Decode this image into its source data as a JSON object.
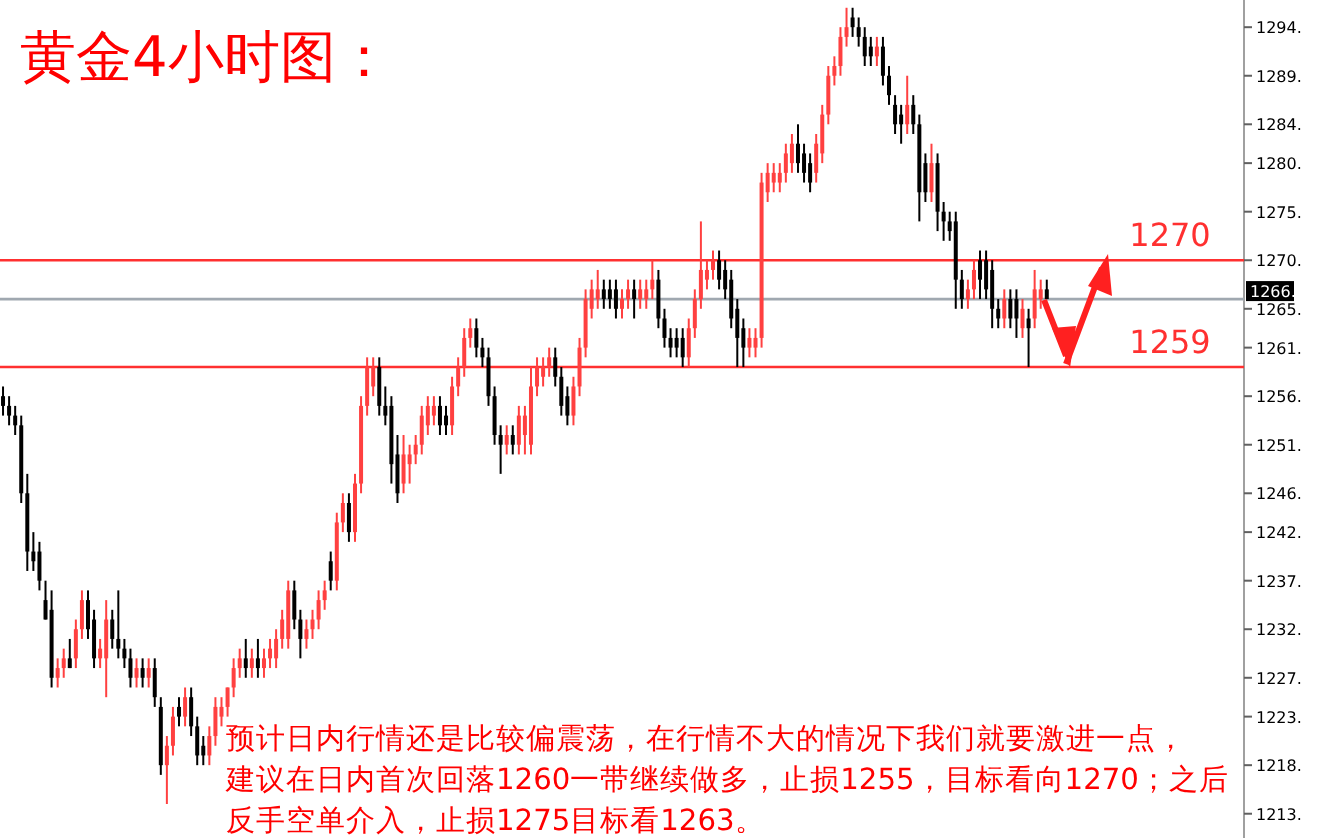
{
  "chart_data": {
    "type": "candlestick",
    "title": "黄金4小时图：",
    "categories": [
      null,
      null,
      null,
      null,
      null,
      null,
      null,
      null,
      null,
      null,
      null,
      null,
      null,
      null,
      null,
      null,
      null,
      null,
      null,
      null,
      null,
      null,
      null,
      null,
      null,
      null,
      null,
      null,
      null,
      null,
      null,
      null,
      null,
      null,
      null,
      null,
      null,
      null,
      null,
      null,
      null,
      null,
      null,
      null,
      null,
      null,
      null,
      null,
      null,
      null,
      null,
      null,
      null,
      null,
      null,
      null,
      null,
      null,
      null,
      null,
      null,
      null,
      null,
      null,
      null,
      null,
      null,
      null,
      null,
      null,
      null,
      null,
      null,
      null,
      null,
      null,
      null,
      null,
      null,
      null,
      null,
      null,
      null,
      null,
      null,
      null,
      null,
      null,
      null,
      null,
      null,
      null,
      null,
      null,
      null,
      null,
      null,
      null,
      null,
      null,
      null,
      null,
      null,
      null,
      null,
      null,
      null,
      null,
      null,
      null,
      null,
      null,
      null,
      null,
      null,
      null,
      null,
      null,
      null,
      null,
      null,
      null,
      null,
      null,
      null,
      null,
      null,
      null,
      null,
      null,
      null,
      null,
      null,
      null,
      null,
      null,
      null,
      null,
      null,
      null,
      null,
      null,
      null,
      null,
      null,
      null,
      null,
      null,
      null,
      null,
      null,
      null,
      null,
      null,
      null,
      null,
      null,
      null,
      null,
      null,
      null,
      null,
      null,
      null,
      null,
      null,
      null,
      null,
      null,
      null,
      null,
      null,
      null,
      null,
      null,
      null,
      null,
      null,
      null,
      null,
      null,
      null,
      null,
      null,
      null,
      null,
      null,
      null,
      null,
      null,
      null,
      null,
      null,
      null,
      null,
      null,
      null,
      null,
      null,
      null,
      null,
      null,
      null,
      null,
      null
    ],
    "ohlc": [
      [
        1256,
        1257,
        1254,
        1255
      ],
      [
        1255,
        1256,
        1253,
        1254
      ],
      [
        1254,
        1255,
        1252,
        1253
      ],
      [
        1253,
        1254,
        1245,
        1246
      ],
      [
        1246,
        1248,
        1238,
        1240
      ],
      [
        1240,
        1242,
        1238,
        1239
      ],
      [
        1240,
        1241,
        1236,
        1237
      ],
      [
        1235,
        1237,
        1233,
        1233
      ],
      [
        1234,
        1236,
        1226,
        1227
      ],
      [
        1227,
        1229,
        1226,
        1228
      ],
      [
        1228,
        1230,
        1227,
        1229
      ],
      [
        1229,
        1231,
        1228,
        1228
      ],
      [
        1229,
        1233,
        1228,
        1232
      ],
      [
        1232,
        1236,
        1231,
        1235
      ],
      [
        1235,
        1236,
        1231,
        1232
      ],
      [
        1233,
        1234,
        1228,
        1229
      ],
      [
        1229,
        1231,
        1228,
        1230
      ],
      [
        1229,
        1235,
        1225,
        1233
      ],
      [
        1233,
        1234,
        1230,
        1231
      ],
      [
        1231,
        1236,
        1229,
        1230
      ],
      [
        1230,
        1231,
        1228,
        1229
      ],
      [
        1229,
        1230,
        1226,
        1227
      ],
      [
        1227,
        1229,
        1226,
        1228
      ],
      [
        1228,
        1229,
        1226,
        1227
      ],
      [
        1227,
        1229,
        1226,
        1228
      ],
      [
        1228,
        1229,
        1224,
        1225
      ],
      [
        1224,
        1225,
        1217,
        1218
      ],
      [
        1218,
        1221,
        1214,
        1220
      ],
      [
        1220,
        1224,
        1219,
        1223
      ],
      [
        1224,
        1225,
        1222,
        1223
      ],
      [
        1223,
        1226,
        1222,
        1225
      ],
      [
        1225,
        1226,
        1221,
        1222
      ],
      [
        1222,
        1223,
        1218,
        1219
      ],
      [
        1220,
        1221,
        1218,
        1219
      ],
      [
        1219,
        1222,
        1218,
        1221
      ],
      [
        1221,
        1225,
        1220,
        1224
      ],
      [
        1223,
        1225,
        1222,
        1224
      ],
      [
        1224,
        1226,
        1223,
        1226
      ],
      [
        1226,
        1229,
        1225,
        1228
      ],
      [
        1228,
        1230,
        1227,
        1229
      ],
      [
        1229,
        1231,
        1227,
        1228
      ],
      [
        1228,
        1230,
        1227,
        1229
      ],
      [
        1229,
        1231,
        1227,
        1228
      ],
      [
        1228,
        1230,
        1227,
        1229
      ],
      [
        1229,
        1231,
        1228,
        1230
      ],
      [
        1229,
        1232,
        1228,
        1231
      ],
      [
        1231,
        1234,
        1230,
        1233
      ],
      [
        1231,
        1237,
        1230,
        1236
      ],
      [
        1236,
        1237,
        1232,
        1233
      ],
      [
        1233,
        1234,
        1229,
        1231
      ],
      [
        1231,
        1233,
        1230,
        1232
      ],
      [
        1232,
        1234,
        1231,
        1233
      ],
      [
        1233,
        1236,
        1232,
        1235
      ],
      [
        1235,
        1237,
        1234,
        1236
      ],
      [
        1239,
        1240,
        1236,
        1237
      ],
      [
        1237,
        1244,
        1236,
        1243
      ],
      [
        1243,
        1246,
        1242,
        1245
      ],
      [
        1245,
        1246,
        1241,
        1242
      ],
      [
        1242,
        1248,
        1241,
        1247
      ],
      [
        1247,
        1256,
        1246,
        1255
      ],
      [
        1255,
        1260,
        1254,
        1259
      ],
      [
        1257,
        1260,
        1256,
        1259
      ],
      [
        1259,
        1260,
        1254,
        1255
      ],
      [
        1255,
        1257,
        1253,
        1254
      ],
      [
        1255,
        1256,
        1247,
        1249
      ],
      [
        1250,
        1252,
        1245,
        1246
      ],
      [
        1247,
        1252,
        1246,
        1250
      ],
      [
        1249,
        1251,
        1247,
        1250
      ],
      [
        1250,
        1252,
        1249,
        1251
      ],
      [
        1251,
        1255,
        1250,
        1254
      ],
      [
        1253,
        1256,
        1252,
        1255
      ],
      [
        1254,
        1256,
        1253,
        1255
      ],
      [
        1255,
        1256,
        1252,
        1253
      ],
      [
        1254,
        1255,
        1252,
        1253
      ],
      [
        1253,
        1258,
        1252,
        1257
      ],
      [
        1257,
        1260,
        1256,
        1259
      ],
      [
        1259,
        1263,
        1258,
        1262
      ],
      [
        1262,
        1264,
        1261,
        1263
      ],
      [
        1263,
        1264,
        1260,
        1261
      ],
      [
        1261,
        1262,
        1259,
        1260
      ],
      [
        1260,
        1261,
        1255,
        1256
      ],
      [
        1256,
        1257,
        1251,
        1252
      ],
      [
        1252,
        1253,
        1248,
        1251
      ],
      [
        1251,
        1253,
        1250,
        1252
      ],
      [
        1252,
        1253,
        1250,
        1251
      ],
      [
        1251,
        1255,
        1250,
        1254
      ],
      [
        1252,
        1255,
        1250,
        1254
      ],
      [
        1251,
        1259,
        1250,
        1257
      ],
      [
        1257,
        1260,
        1256,
        1259
      ],
      [
        1258,
        1260,
        1257,
        1259
      ],
      [
        1259,
        1261,
        1258,
        1260
      ],
      [
        1260,
        1261,
        1257,
        1258
      ],
      [
        1258,
        1259,
        1254,
        1255
      ],
      [
        1256,
        1257,
        1253,
        1254
      ],
      [
        1254,
        1258,
        1253,
        1257
      ],
      [
        1257,
        1262,
        1256,
        1261
      ],
      [
        1261,
        1267,
        1260,
        1266
      ],
      [
        1265,
        1268,
        1264,
        1267
      ],
      [
        1266,
        1269,
        1265,
        1267
      ],
      [
        1267,
        1268,
        1265,
        1266
      ],
      [
        1267,
        1268,
        1265,
        1266
      ],
      [
        1267,
        1268,
        1264,
        1265
      ],
      [
        1265,
        1267,
        1264,
        1266
      ],
      [
        1266,
        1268,
        1265,
        1267
      ],
      [
        1267,
        1268,
        1264,
        1266
      ],
      [
        1266,
        1268,
        1265,
        1267
      ],
      [
        1266,
        1268,
        1265,
        1267
      ],
      [
        1267,
        1270,
        1266,
        1268
      ],
      [
        1268,
        1269,
        1263,
        1264
      ],
      [
        1264,
        1265,
        1261,
        1262
      ],
      [
        1262,
        1263,
        1260,
        1261
      ],
      [
        1262,
        1263,
        1260,
        1261
      ],
      [
        1262,
        1263,
        1259,
        1260
      ],
      [
        1260,
        1264,
        1259,
        1263
      ],
      [
        1263,
        1267,
        1262,
        1266
      ],
      [
        1266,
        1274,
        1265,
        1269
      ],
      [
        1268,
        1270,
        1267,
        1269
      ],
      [
        1269,
        1271,
        1268,
        1270
      ],
      [
        1270,
        1271,
        1267,
        1268
      ],
      [
        1269,
        1270,
        1266,
        1267
      ],
      [
        1268,
        1269,
        1263,
        1264
      ],
      [
        1265,
        1266,
        1259,
        1262
      ],
      [
        1263,
        1264,
        1259,
        1261
      ],
      [
        1261,
        1263,
        1260,
        1262
      ],
      [
        1261,
        1263,
        1260,
        1262
      ],
      [
        1262,
        1279,
        1261,
        1278
      ],
      [
        1277,
        1280,
        1276,
        1279
      ],
      [
        1278,
        1280,
        1277,
        1279
      ],
      [
        1278,
        1280,
        1277,
        1279
      ],
      [
        1279,
        1282,
        1278,
        1281
      ],
      [
        1280,
        1283,
        1279,
        1282
      ],
      [
        1282,
        1284,
        1279,
        1280
      ],
      [
        1281,
        1282,
        1278,
        1279
      ],
      [
        1280,
        1281,
        1277,
        1278
      ],
      [
        1279,
        1283,
        1278,
        1282
      ],
      [
        1281,
        1286,
        1280,
        1285
      ],
      [
        1285,
        1290,
        1284,
        1289
      ],
      [
        1289,
        1291,
        1288,
        1290
      ],
      [
        1290,
        1294,
        1289,
        1293
      ],
      [
        1293,
        1296,
        1292,
        1294
      ],
      [
        1295,
        1296,
        1293,
        1294
      ],
      [
        1294,
        1295,
        1292,
        1293
      ],
      [
        1293,
        1294,
        1290,
        1291
      ],
      [
        1292,
        1293,
        1290,
        1291
      ],
      [
        1291,
        1293,
        1290,
        1292
      ],
      [
        1292,
        1293,
        1288,
        1289
      ],
      [
        1289,
        1290,
        1286,
        1287
      ],
      [
        1286,
        1287,
        1283,
        1284
      ],
      [
        1285,
        1286,
        1282,
        1284
      ],
      [
        1284,
        1289,
        1283,
        1286
      ],
      [
        1286,
        1287,
        1283,
        1284
      ],
      [
        1284,
        1285,
        1274,
        1277
      ],
      [
        1280,
        1281,
        1276,
        1277
      ],
      [
        1277,
        1282,
        1276,
        1280
      ],
      [
        1280,
        1281,
        1273,
        1275
      ],
      [
        1275,
        1276,
        1272,
        1274
      ],
      [
        1274,
        1275,
        1272,
        1273
      ],
      [
        1274,
        1275,
        1265,
        1268
      ],
      [
        1268,
        1269,
        1265,
        1266
      ],
      [
        1266,
        1268,
        1265,
        1267
      ],
      [
        1267,
        1270,
        1266,
        1269
      ],
      [
        1270,
        1271,
        1266,
        1268
      ],
      [
        1270,
        1271,
        1266,
        1267
      ],
      [
        1269,
        1270,
        1263,
        1265
      ],
      [
        1265,
        1266,
        1263,
        1264
      ],
      [
        1264,
        1267,
        1263,
        1266
      ],
      [
        1266,
        1267,
        1263,
        1264
      ],
      [
        1266,
        1267,
        1262,
        1264
      ],
      [
        1263,
        1266,
        1262,
        1265
      ],
      [
        1264,
        1265,
        1259,
        1263
      ],
      [
        1264,
        1269,
        1263,
        1267
      ],
      [
        1266,
        1268,
        1265,
        1267
      ],
      [
        1267,
        1268,
        1266,
        1266
      ],
      null,
      null,
      null,
      null,
      null,
      null,
      null,
      null,
      null,
      null,
      null,
      null,
      null,
      null,
      null,
      null,
      null,
      null,
      null,
      null,
      null,
      null,
      null,
      null,
      null,
      null,
      null,
      null,
      null,
      null,
      null,
      null
    ],
    "colors": [
      "#000000",
      "#000000",
      "#000000",
      "#000000",
      "#000000",
      "#000000",
      "#000000",
      "#000000",
      "#000000",
      "#ff4040",
      "#ff4040",
      "#000000",
      "#ff4040",
      "#ff4040",
      "#000000",
      "#000000",
      "#ff4040",
      "#ff4040",
      "#000000",
      "#000000",
      "#000000",
      "#000000",
      "#ff4040",
      "#000000",
      "#ff4040",
      "#000000",
      "#000000",
      "#ff4040",
      "#ff4040",
      "#000000",
      "#ff4040",
      "#000000",
      "#000000",
      "#000000",
      "#ff4040",
      "#ff4040",
      "#ff4040",
      "#ff4040",
      "#ff4040",
      "#ff4040",
      "#000000",
      "#ff4040",
      "#000000",
      "#ff4040",
      "#ff4040",
      "#ff4040",
      "#ff4040",
      "#ff4040",
      "#000000",
      "#000000",
      "#ff4040",
      "#ff4040",
      "#ff4040",
      "#ff4040",
      "#000000",
      "#ff4040",
      "#ff4040",
      "#000000",
      "#ff4040",
      "#ff4040",
      "#ff4040",
      "#ff4040",
      "#000000",
      "#000000",
      "#000000",
      "#000000",
      "#ff4040",
      "#ff4040",
      "#ff4040",
      "#ff4040",
      "#ff4040",
      "#ff4040",
      "#000000",
      "#000000",
      "#ff4040",
      "#ff4040",
      "#ff4040",
      "#ff4040",
      "#000000",
      "#000000",
      "#000000",
      "#000000",
      "#000000",
      "#ff4040",
      "#000000",
      "#ff4040",
      "#ff4040",
      "#ff4040",
      "#ff4040",
      "#ff4040",
      "#ff4040",
      "#000000",
      "#000000",
      "#000000",
      "#ff4040",
      "#ff4040",
      "#ff4040",
      "#ff4040",
      "#ff4040",
      "#000000",
      "#000000",
      "#000000",
      "#ff4040",
      "#ff4040",
      "#000000",
      "#ff4040",
      "#ff4040",
      "#ff4040",
      "#000000",
      "#000000",
      "#000000",
      "#000000",
      "#000000",
      "#ff4040",
      "#ff4040",
      "#ff4040",
      "#ff4040",
      "#ff4040",
      "#000000",
      "#000000",
      "#000000",
      "#000000",
      "#000000",
      "#ff4040",
      "#ff4040",
      "#ff4040",
      "#ff4040",
      "#ff4040",
      "#ff4040",
      "#ff4040",
      "#ff4040",
      "#000000",
      "#000000",
      "#000000",
      "#ff4040",
      "#ff4040",
      "#ff4040",
      "#ff4040",
      "#ff4040",
      "#ff4040",
      "#000000",
      "#000000",
      "#000000",
      "#000000",
      "#ff4040",
      "#000000",
      "#000000",
      "#000000",
      "#000000",
      "#ff4040",
      "#000000",
      "#000000",
      "#000000",
      "#ff4040",
      "#000000",
      "#000000",
      "#000000",
      "#000000",
      "#000000",
      "#ff4040",
      "#ff4040",
      "#000000",
      "#000000",
      "#000000",
      "#000000",
      "#ff4040",
      "#000000",
      "#000000",
      "#ff4040",
      "#000000",
      "#ff4040",
      "#ff4040",
      "#000000",
      null,
      null,
      null,
      null,
      null,
      null,
      null,
      null,
      null,
      null,
      null,
      null,
      null,
      null,
      null,
      null,
      null,
      null,
      null,
      null,
      null,
      null,
      null,
      null,
      null,
      null,
      null,
      null,
      null,
      null,
      null,
      null
    ],
    "ylim": [
      1210.5,
      1296.8
    ],
    "yticks": [
      {
        "value": 1294,
        "label": "1294."
      },
      {
        "value": 1289,
        "label": "1289."
      },
      {
        "value": 1284,
        "label": "1284."
      },
      {
        "value": 1280,
        "label": "1280."
      },
      {
        "value": 1275,
        "label": "1275."
      },
      {
        "value": 1270,
        "label": "1270."
      },
      {
        "value": 1265,
        "label": "1265."
      },
      {
        "value": 1261,
        "label": "1261."
      },
      {
        "value": 1256,
        "label": "1256."
      },
      {
        "value": 1251,
        "label": "1251."
      },
      {
        "value": 1246,
        "label": "1246."
      },
      {
        "value": 1242,
        "label": "1242."
      },
      {
        "value": 1237,
        "label": "1237."
      },
      {
        "value": 1232,
        "label": "1232."
      },
      {
        "value": 1227,
        "label": "1227."
      },
      {
        "value": 1223,
        "label": "1223."
      },
      {
        "value": 1218,
        "label": "1218."
      },
      {
        "value": 1213,
        "label": "1213."
      }
    ],
    "ref_lines": [
      {
        "axis": "y",
        "value": 1266,
        "label": "1266.",
        "color": "#a0a8b0"
      },
      {
        "axis": "y",
        "value": 1270,
        "label": "1270",
        "color": "#ff3030"
      },
      {
        "axis": "y",
        "value": 1259,
        "label": "1259",
        "color": "#ff3030"
      }
    ],
    "annotations": [
      "预计日内行情还是比较偏震荡，在行情不大的情况下我们就要激进一点，",
      "建议在日内首次回落1260一带继续做多，止损1255，目标看向1270；之后",
      "反手空单介入，止损1275目标看1263。"
    ]
  }
}
